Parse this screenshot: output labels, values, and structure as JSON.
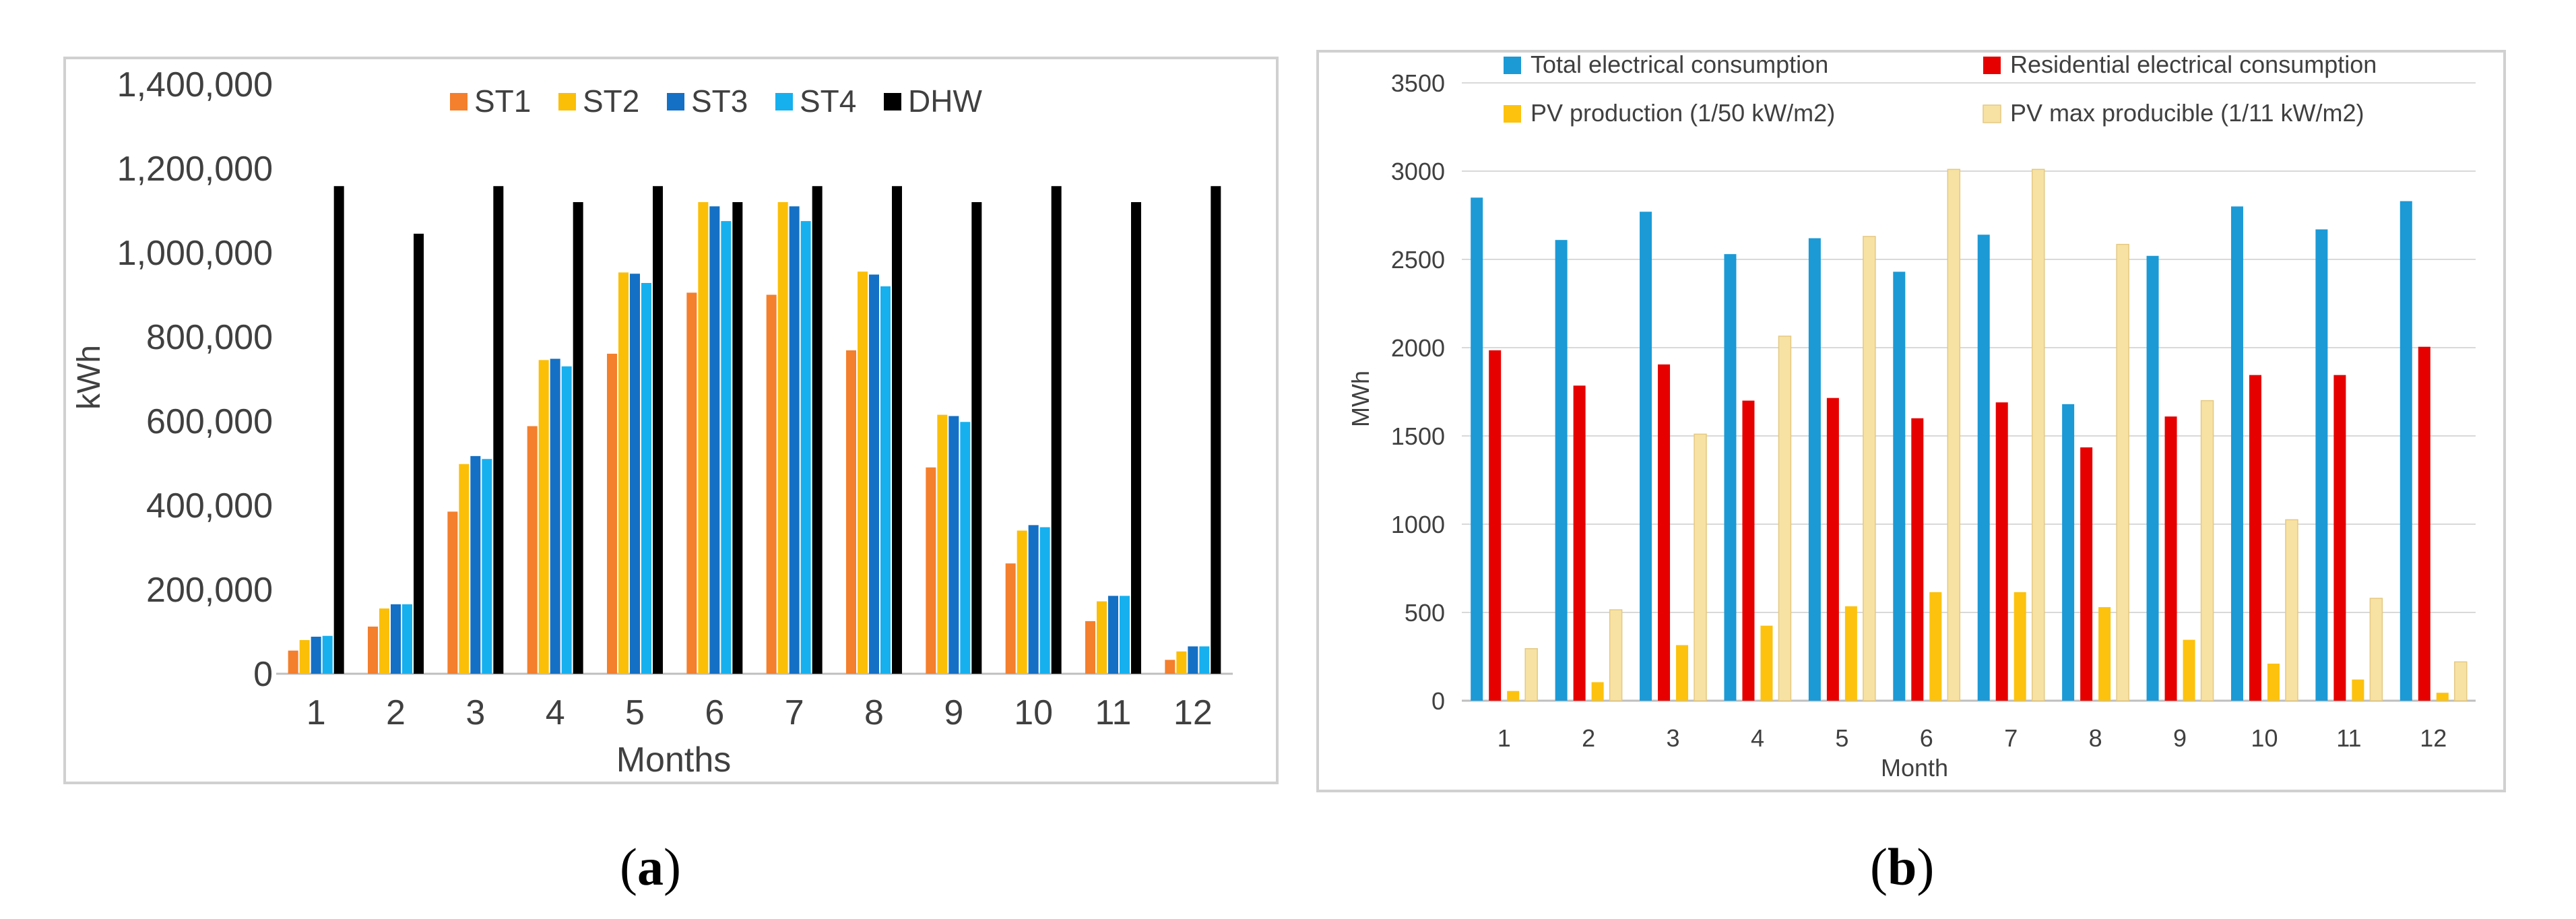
{
  "figure": {
    "caption_a": {
      "open": "(",
      "letter": "a",
      "close": ")"
    },
    "caption_b": {
      "open": "(",
      "letter": "b",
      "close": ")"
    }
  },
  "chart_data": [
    {
      "id": "a",
      "type": "bar",
      "title": "",
      "xlabel": "Months",
      "ylabel": "kWh",
      "ylim": [
        0,
        1400000
      ],
      "yticks": [
        0,
        200000,
        400000,
        600000,
        800000,
        1000000,
        1200000,
        1400000
      ],
      "ytick_labels": [
        "0",
        "200,000",
        "400,000",
        "600,000",
        "800,000",
        "1,000,000",
        "1,200,000",
        "1,400,000"
      ],
      "categories": [
        "1",
        "2",
        "3",
        "4",
        "5",
        "6",
        "7",
        "8",
        "9",
        "10",
        "11",
        "12"
      ],
      "legend_position": "top",
      "grid": false,
      "series": [
        {
          "name": "ST1",
          "color": "#f47f2c",
          "values": [
            55000,
            112000,
            385000,
            588000,
            760000,
            905000,
            900000,
            768000,
            490000,
            262000,
            125000,
            33000
          ]
        },
        {
          "name": "ST2",
          "color": "#fbbf08",
          "values": [
            80000,
            155000,
            498000,
            745000,
            953000,
            1120000,
            1120000,
            955000,
            615000,
            340000,
            172000,
            53000
          ]
        },
        {
          "name": "ST3",
          "color": "#1470c5",
          "values": [
            88000,
            165000,
            517000,
            748000,
            950000,
            1110000,
            1110000,
            948000,
            612000,
            353000,
            185000,
            65000
          ]
        },
        {
          "name": "ST4",
          "color": "#16b0ef",
          "values": [
            90000,
            165000,
            510000,
            730000,
            928000,
            1075000,
            1075000,
            920000,
            598000,
            348000,
            185000,
            65000
          ]
        },
        {
          "name": "DHW",
          "color": "#000000",
          "values": [
            1158000,
            1045000,
            1158000,
            1120000,
            1158000,
            1120000,
            1158000,
            1158000,
            1120000,
            1158000,
            1120000,
            1158000
          ]
        }
      ]
    },
    {
      "id": "b",
      "type": "bar",
      "title": "",
      "xlabel": "Month",
      "ylabel": "MWh",
      "ylim": [
        0,
        3500
      ],
      "yticks": [
        0,
        500,
        1000,
        1500,
        2000,
        2500,
        3000,
        3500
      ],
      "ytick_labels": [
        "0",
        "500",
        "1000",
        "1500",
        "2000",
        "2500",
        "3000",
        "3500"
      ],
      "categories": [
        "1",
        "2",
        "3",
        "4",
        "5",
        "6",
        "7",
        "8",
        "9",
        "10",
        "11",
        "12"
      ],
      "legend_position": "top",
      "grid": true,
      "series": [
        {
          "name": "Total electrical consumption",
          "color": "#1b9ad6",
          "values": [
            2850,
            2610,
            2770,
            2530,
            2620,
            2430,
            2640,
            1680,
            2520,
            2800,
            2670,
            2830
          ]
        },
        {
          "name": "Residential electrical consumption",
          "color": "#e60000",
          "values": [
            1985,
            1785,
            1905,
            1700,
            1715,
            1600,
            1690,
            1435,
            1610,
            1845,
            1845,
            2005
          ]
        },
        {
          "name": "PV production (1/50 kW/m2)",
          "color": "#fcc20e",
          "values": [
            55,
            105,
            315,
            425,
            535,
            615,
            615,
            530,
            345,
            210,
            120,
            45
          ]
        },
        {
          "name": "PV max producible (1/11 kW/m2)",
          "color": "#f7e2a3",
          "values": [
            295,
            515,
            1510,
            2065,
            2630,
            3010,
            3010,
            2585,
            1700,
            1025,
            580,
            220
          ]
        }
      ]
    }
  ]
}
